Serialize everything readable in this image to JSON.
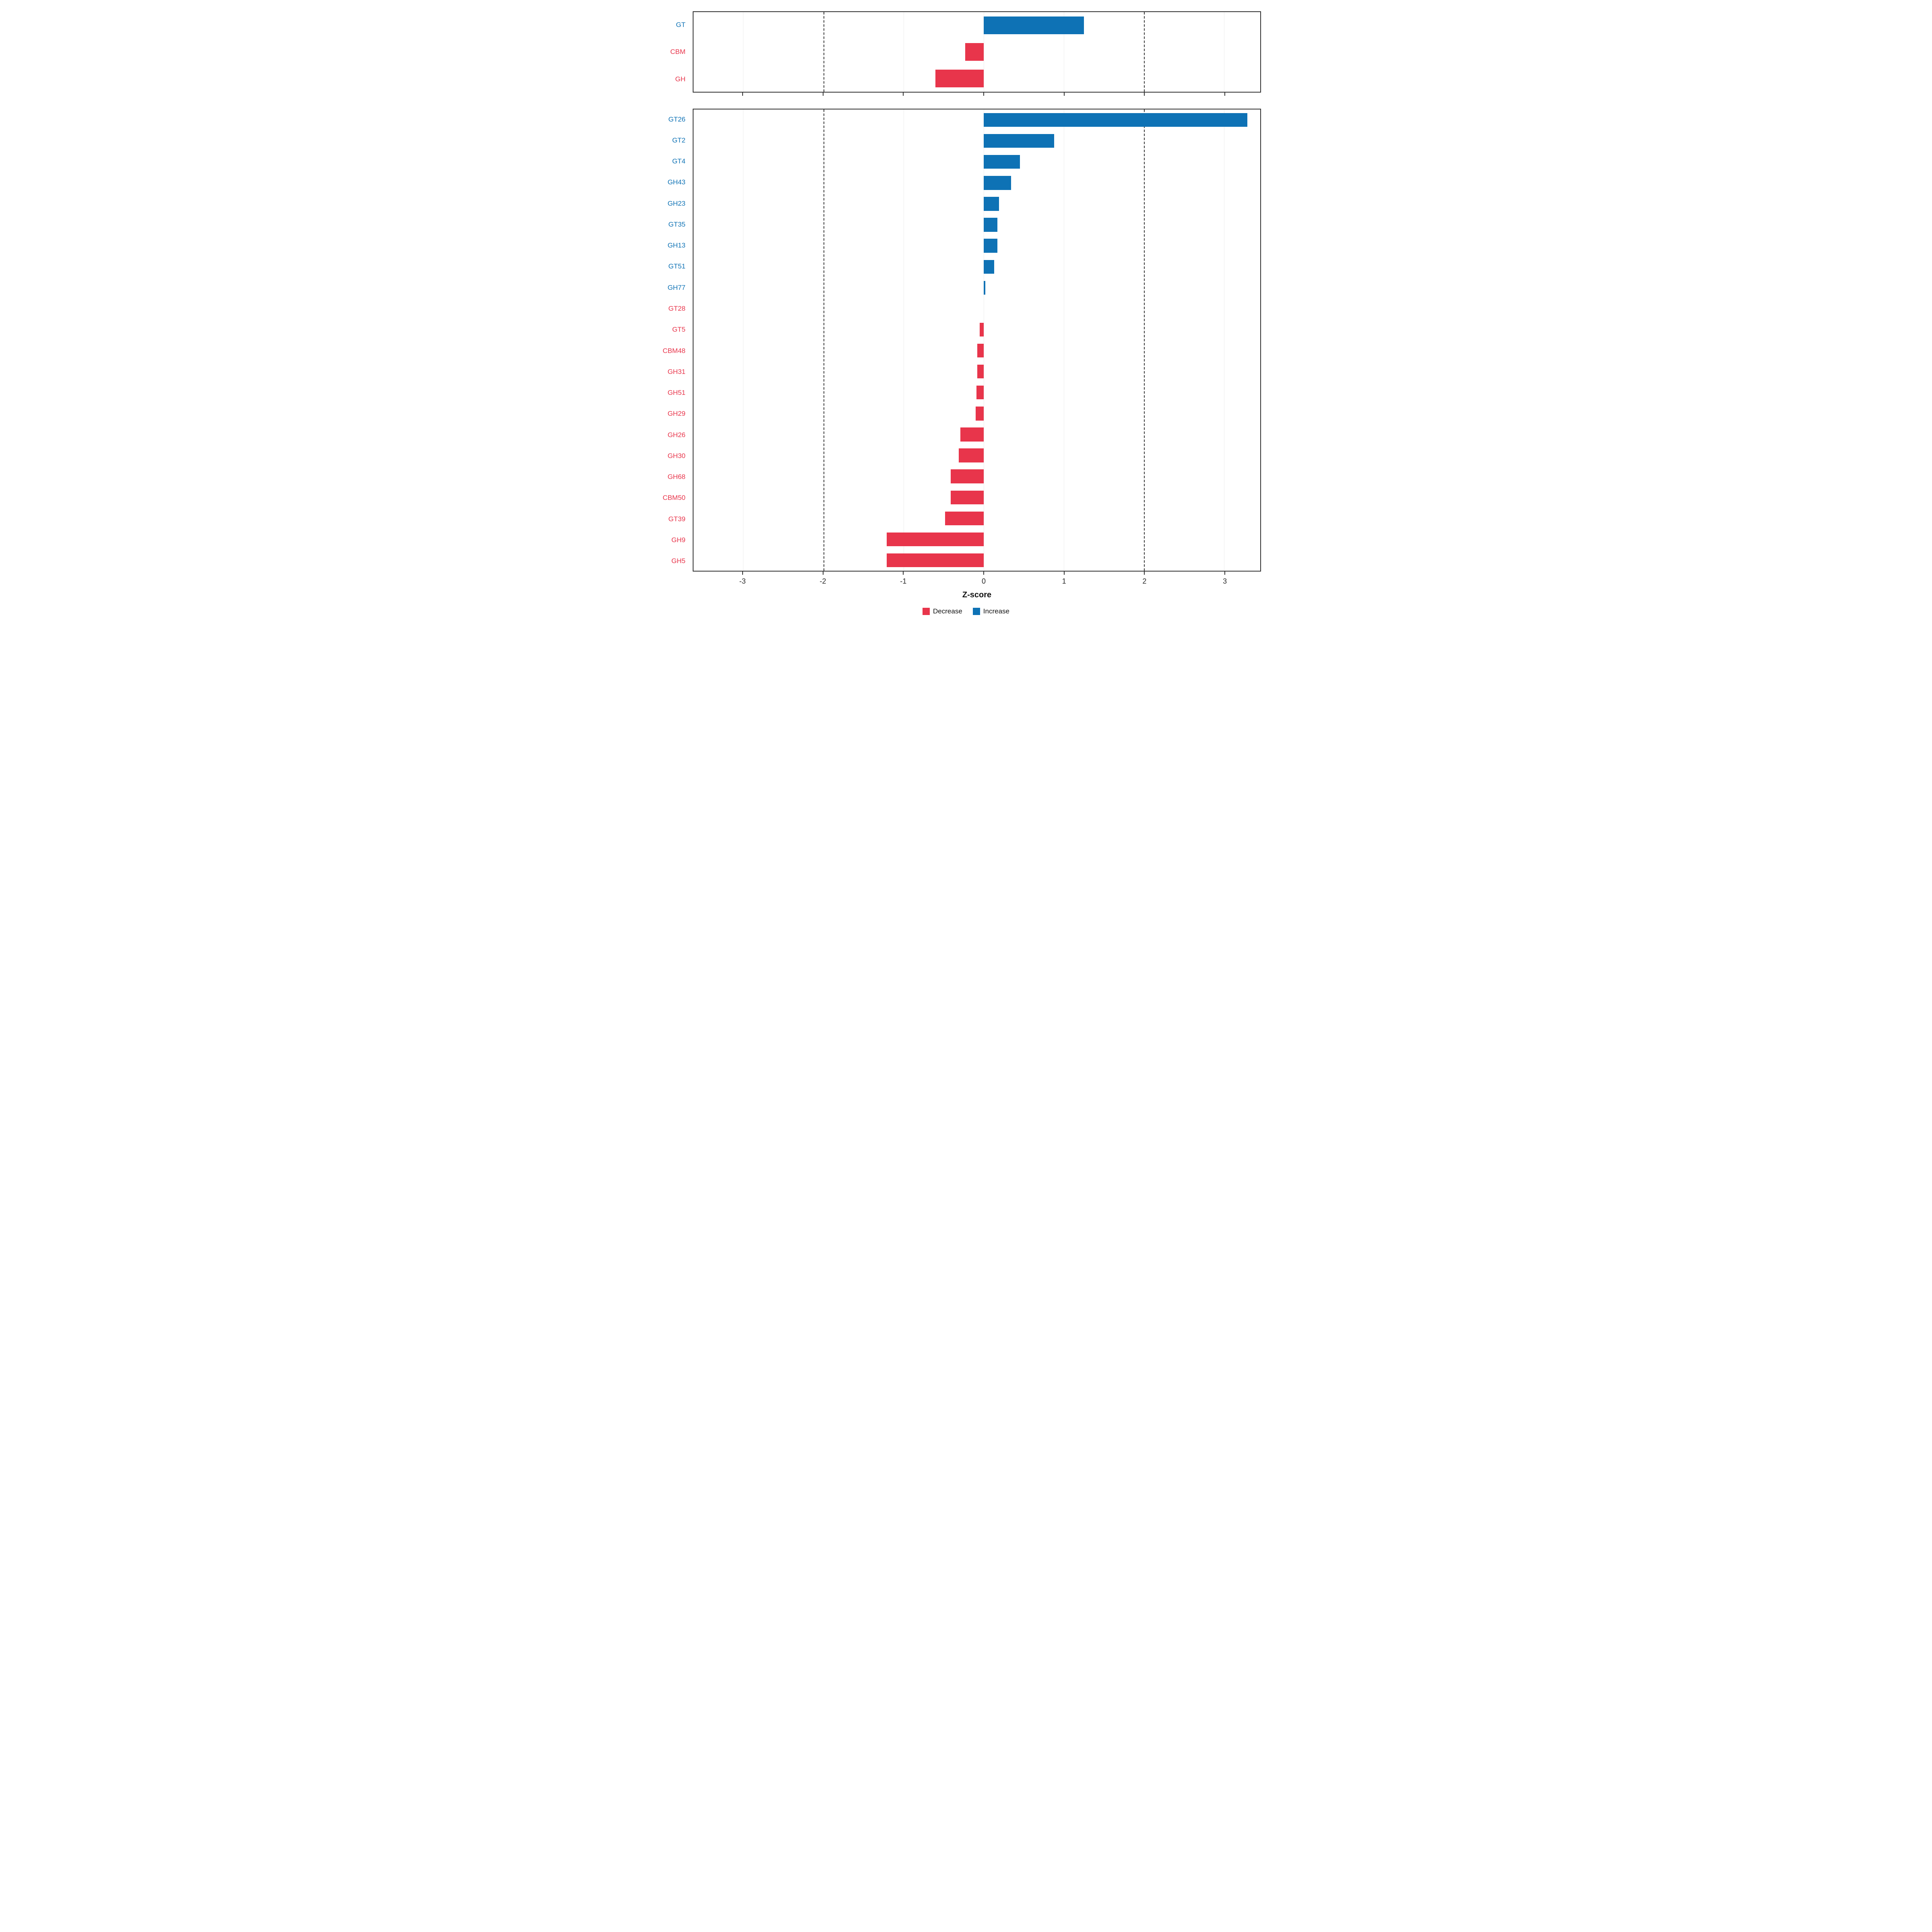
{
  "figure": {
    "xlabel": "Z-score",
    "colors": {
      "decrease": "#E8354B",
      "increase": "#0E72B5"
    },
    "legend": [
      {
        "label": "Decrease",
        "color_key": "decrease"
      },
      {
        "label": "Increase",
        "color_key": "increase"
      }
    ],
    "axis": {
      "xmin": -3.62,
      "xmax": 3.45,
      "ticks": [
        -3,
        -2,
        -1,
        0,
        1,
        2,
        3
      ],
      "ref_lines": [
        -2,
        2
      ],
      "grid": "major-light"
    }
  },
  "chart_data": [
    {
      "type": "bar",
      "orientation": "horizontal",
      "panel": "enzyme-class-summary",
      "categories": [
        "GT",
        "CBM",
        "GH"
      ],
      "values": [
        1.25,
        -0.23,
        -0.6
      ],
      "xlabel": "Z-score",
      "xlim": [
        -3.62,
        3.45
      ],
      "legend_position": "bottom"
    },
    {
      "type": "bar",
      "orientation": "horizontal",
      "panel": "enzyme-family-detail",
      "categories": [
        "GT26",
        "GT2",
        "GT4",
        "GH43",
        "GH23",
        "GT35",
        "GH13",
        "GT51",
        "GH77",
        "GT28",
        "GT5",
        "CBM48",
        "GH31",
        "GH51",
        "GH29",
        "GH26",
        "GH30",
        "GH68",
        "CBM50",
        "GT39",
        "GH9",
        "GH5"
      ],
      "values": [
        3.29,
        0.88,
        0.45,
        0.34,
        0.19,
        0.17,
        0.17,
        0.13,
        0.02,
        0.0,
        -0.05,
        -0.08,
        -0.08,
        -0.09,
        -0.1,
        -0.29,
        -0.31,
        -0.41,
        -0.41,
        -0.48,
        -1.21,
        -1.21
      ],
      "xlabel": "Z-score",
      "xlim": [
        -3.62,
        3.45
      ],
      "legend_position": "bottom"
    }
  ]
}
